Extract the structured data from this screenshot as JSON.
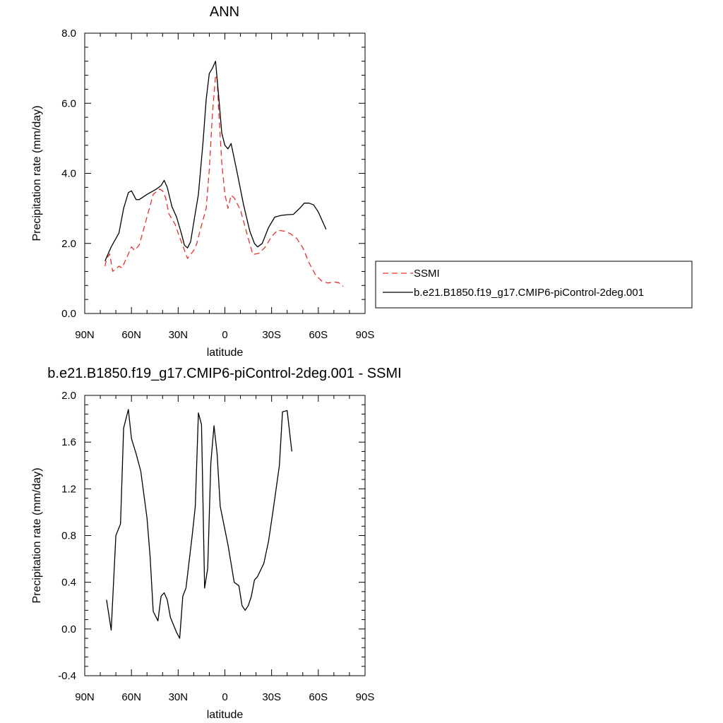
{
  "chart_data": [
    {
      "type": "line",
      "title": "ANN",
      "xlabel": "latitude",
      "ylabel": "Precipitation rate (mm/day)",
      "xlim": [
        90,
        -90
      ],
      "ylim": [
        0,
        8
      ],
      "x_tick_values": [
        90,
        60,
        30,
        0,
        -30,
        -60,
        -90
      ],
      "x_tick_labels": [
        "90N",
        "60N",
        "30N",
        "0",
        "30S",
        "60S",
        "90S"
      ],
      "y_tick_values": [
        0,
        2,
        4,
        6,
        8
      ],
      "y_tick_labels": [
        "0.0",
        "2.0",
        "4.0",
        "6.0",
        "8.0"
      ],
      "legend_position": "right",
      "series": [
        {
          "name": "SSMI",
          "color": "#e8302a",
          "dash": "dashed",
          "points": [
            [
              77,
              1.35
            ],
            [
              76,
              1.55
            ],
            [
              74,
              1.7
            ],
            [
              72,
              1.2
            ],
            [
              68,
              1.35
            ],
            [
              66,
              1.3
            ],
            [
              60,
              1.9
            ],
            [
              58,
              1.8
            ],
            [
              55,
              1.95
            ],
            [
              46,
              3.4
            ],
            [
              42,
              3.55
            ],
            [
              40,
              3.5
            ],
            [
              38,
              3.3
            ],
            [
              36,
              2.85
            ],
            [
              32,
              2.55
            ],
            [
              28,
              2.05
            ],
            [
              24,
              1.57
            ],
            [
              20,
              1.8
            ],
            [
              18,
              2.0
            ],
            [
              16,
              2.35
            ],
            [
              12,
              3.0
            ],
            [
              10,
              4.1
            ],
            [
              8,
              5.7
            ],
            [
              6,
              6.8
            ],
            [
              5,
              6.7
            ],
            [
              4,
              5.8
            ],
            [
              2,
              4.3
            ],
            [
              0,
              3.4
            ],
            [
              -2,
              3.0
            ],
            [
              -4,
              3.38
            ],
            [
              -6,
              3.3
            ],
            [
              -10,
              2.95
            ],
            [
              -14,
              2.3
            ],
            [
              -18,
              1.68
            ],
            [
              -22,
              1.72
            ],
            [
              -26,
              1.9
            ],
            [
              -30,
              2.2
            ],
            [
              -34,
              2.38
            ],
            [
              -38,
              2.35
            ],
            [
              -42,
              2.28
            ],
            [
              -46,
              2.15
            ],
            [
              -50,
              1.88
            ],
            [
              -54,
              1.45
            ],
            [
              -58,
              1.12
            ],
            [
              -62,
              0.93
            ],
            [
              -66,
              0.87
            ],
            [
              -70,
              0.9
            ],
            [
              -73,
              0.88
            ],
            [
              -76,
              0.77
            ]
          ]
        },
        {
          "name": "b.e21.B1850.f19_g17.CMIP6-piControl-2deg.001",
          "color": "#000000",
          "dash": "solid",
          "points": [
            [
              77,
              1.5
            ],
            [
              76,
              1.6
            ],
            [
              73,
              1.9
            ],
            [
              68,
              2.3
            ],
            [
              65,
              3.0
            ],
            [
              62,
              3.45
            ],
            [
              60,
              3.5
            ],
            [
              57,
              3.25
            ],
            [
              55,
              3.25
            ],
            [
              50,
              3.4
            ],
            [
              44,
              3.55
            ],
            [
              41,
              3.65
            ],
            [
              39,
              3.8
            ],
            [
              37,
              3.6
            ],
            [
              34,
              3.05
            ],
            [
              31,
              2.75
            ],
            [
              28,
              2.3
            ],
            [
              26,
              1.95
            ],
            [
              24,
              1.87
            ],
            [
              22,
              2.05
            ],
            [
              20,
              2.6
            ],
            [
              17,
              3.4
            ],
            [
              14,
              4.9
            ],
            [
              12,
              6.1
            ],
            [
              10,
              6.85
            ],
            [
              8,
              7.0
            ],
            [
              6,
              7.2
            ],
            [
              4,
              6.2
            ],
            [
              2,
              5.15
            ],
            [
              0,
              4.8
            ],
            [
              -2,
              4.7
            ],
            [
              -4,
              4.85
            ],
            [
              -8,
              4.0
            ],
            [
              -12,
              3.1
            ],
            [
              -16,
              2.35
            ],
            [
              -19,
              2.0
            ],
            [
              -21,
              1.9
            ],
            [
              -24,
              2.0
            ],
            [
              -28,
              2.45
            ],
            [
              -32,
              2.75
            ],
            [
              -36,
              2.8
            ],
            [
              -40,
              2.82
            ],
            [
              -44,
              2.83
            ],
            [
              -48,
              3.0
            ],
            [
              -51,
              3.15
            ],
            [
              -54,
              3.15
            ],
            [
              -57,
              3.1
            ],
            [
              -60,
              2.9
            ],
            [
              -63,
              2.6
            ],
            [
              -65,
              2.4
            ]
          ]
        }
      ]
    },
    {
      "type": "line",
      "title": "b.e21.B1850.f19_g17.CMIP6-piControl-2deg.001 - SSMI",
      "xlabel": "latitude",
      "ylabel": "Precipitation rate (mm/day)",
      "xlim": [
        90,
        -90
      ],
      "ylim": [
        -0.4,
        2.0
      ],
      "x_tick_values": [
        90,
        60,
        30,
        0,
        -30,
        -60,
        -90
      ],
      "x_tick_labels": [
        "90N",
        "60N",
        "30N",
        "0",
        "30S",
        "60S",
        "90S"
      ],
      "y_tick_values": [
        -0.4,
        0,
        0.4,
        0.8,
        1.2,
        1.6,
        2.0
      ],
      "y_tick_labels": [
        "-0.4",
        "0.0",
        "0.4",
        "0.8",
        "1.2",
        "1.6",
        "2.0"
      ],
      "series": [
        {
          "color": "#000000",
          "dash": "solid",
          "points": [
            [
              76,
              0.25
            ],
            [
              73,
              -0.01
            ],
            [
              70,
              0.8
            ],
            [
              67,
              0.9
            ],
            [
              65,
              1.72
            ],
            [
              62,
              1.88
            ],
            [
              60,
              1.63
            ],
            [
              57,
              1.5
            ],
            [
              54,
              1.35
            ],
            [
              50,
              0.95
            ],
            [
              48,
              0.62
            ],
            [
              46,
              0.15
            ],
            [
              43,
              0.07
            ],
            [
              41,
              0.28
            ],
            [
              39,
              0.31
            ],
            [
              37,
              0.25
            ],
            [
              35,
              0.1
            ],
            [
              31,
              -0.03
            ],
            [
              29,
              -0.08
            ],
            [
              27,
              0.28
            ],
            [
              25,
              0.35
            ],
            [
              21,
              0.8
            ],
            [
              19,
              1.05
            ],
            [
              17,
              1.85
            ],
            [
              15,
              1.75
            ],
            [
              13,
              0.35
            ],
            [
              11,
              0.52
            ],
            [
              9,
              1.42
            ],
            [
              7,
              1.74
            ],
            [
              5,
              1.5
            ],
            [
              3,
              1.05
            ],
            [
              -2,
              0.72
            ],
            [
              -6,
              0.4
            ],
            [
              -9,
              0.37
            ],
            [
              -11,
              0.2
            ],
            [
              -13,
              0.16
            ],
            [
              -15,
              0.2
            ],
            [
              -17,
              0.28
            ],
            [
              -19,
              0.42
            ],
            [
              -21,
              0.45
            ],
            [
              -25,
              0.56
            ],
            [
              -28,
              0.75
            ],
            [
              -31,
              1.02
            ],
            [
              -35,
              1.4
            ],
            [
              -37,
              1.86
            ],
            [
              -40,
              1.87
            ],
            [
              -43,
              1.52
            ]
          ]
        }
      ]
    }
  ]
}
